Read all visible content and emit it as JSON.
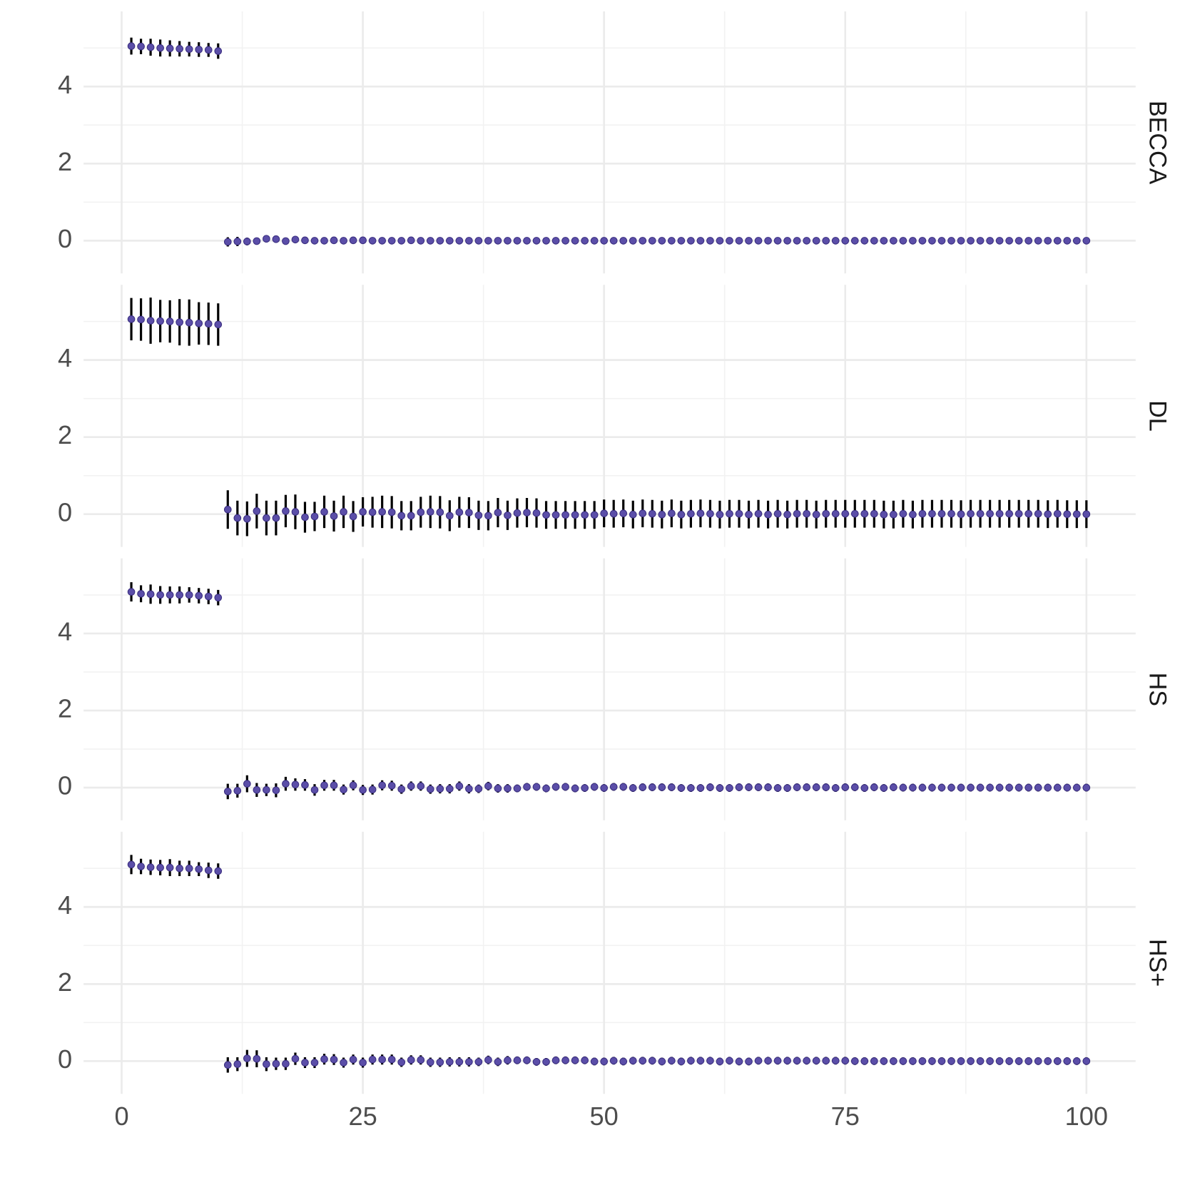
{
  "chart_data": {
    "type": "errorbar",
    "x": [
      1,
      2,
      3,
      4,
      5,
      6,
      7,
      8,
      9,
      10,
      11,
      12,
      13,
      14,
      15,
      16,
      17,
      18,
      19,
      20,
      21,
      22,
      23,
      24,
      25,
      26,
      27,
      28,
      29,
      30,
      31,
      32,
      33,
      34,
      35,
      36,
      37,
      38,
      39,
      40,
      41,
      42,
      43,
      44,
      45,
      46,
      47,
      48,
      49,
      50,
      51,
      52,
      53,
      54,
      55,
      56,
      57,
      58,
      59,
      60,
      61,
      62,
      63,
      64,
      65,
      66,
      67,
      68,
      69,
      70,
      71,
      72,
      73,
      74,
      75,
      76,
      77,
      78,
      79,
      80,
      81,
      82,
      83,
      84,
      85,
      86,
      87,
      88,
      89,
      90,
      91,
      92,
      93,
      94,
      95,
      96,
      97,
      98,
      99,
      100
    ],
    "xlim": [
      -3.95,
      105.1
    ],
    "xticks": [
      0,
      25,
      50,
      75,
      100
    ],
    "ylim": [
      -0.85,
      5.95
    ],
    "yticks": [
      0,
      2,
      4
    ],
    "grid": true,
    "color": "#5b4ea8",
    "error_color": "#000000",
    "series": [
      {
        "name": "BECCA",
        "values": [
          5.05,
          5.04,
          5.02,
          5.0,
          4.99,
          4.98,
          4.97,
          4.96,
          4.95,
          4.92,
          -0.03,
          -0.02,
          -0.02,
          -0.01,
          0.05,
          0.04,
          -0.01,
          0.03,
          0.01,
          0,
          0,
          0.01,
          0,
          0.01,
          0.01,
          0,
          0,
          0,
          0,
          0.01,
          0,
          0,
          0,
          0,
          0,
          0,
          0,
          0,
          0,
          0,
          0,
          0,
          0,
          0,
          0,
          0,
          0,
          0,
          0,
          0,
          0,
          0,
          0,
          0,
          0,
          0,
          0,
          0,
          0,
          0,
          0,
          0,
          0,
          0,
          0,
          0,
          0,
          0,
          0,
          0,
          0,
          0,
          0,
          0,
          0,
          0,
          0,
          0,
          0,
          0,
          0,
          0,
          0,
          0,
          0,
          0,
          0,
          0,
          0,
          0,
          0,
          0,
          0,
          0,
          0,
          0,
          0,
          0,
          0,
          0
        ],
        "errors": [
          0.22,
          0.2,
          0.22,
          0.22,
          0.21,
          0.2,
          0.19,
          0.19,
          0.18,
          0.2,
          0.12,
          0.12,
          0.1,
          0.08,
          0.06,
          0.04,
          0.03,
          0.03,
          0.02,
          0.02,
          0.02,
          0.02,
          0.02,
          0.02,
          0.02,
          0.02,
          0.02,
          0.02,
          0.02,
          0.02,
          0.02,
          0.02,
          0.02,
          0.02,
          0.02,
          0.02,
          0.02,
          0.02,
          0.02,
          0.02,
          0.02,
          0.02,
          0.02,
          0.02,
          0.02,
          0.02,
          0.02,
          0.02,
          0.02,
          0.02,
          0.02,
          0.02,
          0.02,
          0.02,
          0.02,
          0.02,
          0.02,
          0.02,
          0.02,
          0.02,
          0.02,
          0.02,
          0.02,
          0.02,
          0.02,
          0.02,
          0.02,
          0.02,
          0.02,
          0.02,
          0.02,
          0.02,
          0.02,
          0.02,
          0.02,
          0.02,
          0.02,
          0.02,
          0.02,
          0.02,
          0.02,
          0.02,
          0.02,
          0.02,
          0.02,
          0.02,
          0.02,
          0.02,
          0.02,
          0.02,
          0.02,
          0.02,
          0.02,
          0.02,
          0.02,
          0.02,
          0.02,
          0.02,
          0.02,
          0.02
        ]
      },
      {
        "name": "DL",
        "values": [
          5.06,
          5.05,
          5.02,
          5.01,
          5.0,
          4.98,
          4.97,
          4.95,
          4.94,
          4.92,
          0.12,
          -0.1,
          -0.12,
          0.08,
          -0.1,
          -0.1,
          0.08,
          0.06,
          -0.08,
          -0.06,
          0.06,
          -0.05,
          0.06,
          -0.06,
          0.06,
          0.05,
          0.06,
          0.05,
          -0.04,
          -0.04,
          0.05,
          0.06,
          0.05,
          -0.04,
          0.05,
          0.04,
          -0.03,
          -0.04,
          0.04,
          -0.03,
          0.03,
          0.04,
          0.03,
          -0.02,
          -0.02,
          -0.02,
          -0.02,
          -0.02,
          -0.02,
          0.02,
          0.01,
          0.02,
          -0.01,
          0.02,
          0.01,
          -0.01,
          0.02,
          -0.01,
          0.01,
          0.02,
          0.01,
          -0.01,
          0.01,
          0.01,
          -0.01,
          0.01,
          -0.01,
          0.01,
          -0.01,
          0.01,
          0.01,
          -0.01,
          0.01,
          0.01,
          0.01,
          0.01,
          0.01,
          0.01,
          -0.01,
          -0.01,
          0.01,
          -0.01,
          0.01,
          0.01,
          0.01,
          0.01,
          0,
          0.01,
          0.01,
          0.01,
          0.01,
          0.01,
          0.01,
          0.01,
          0.01,
          0,
          0.01,
          0,
          0,
          0
        ],
        "errors": [
          0.55,
          0.55,
          0.6,
          0.55,
          0.55,
          0.6,
          0.6,
          0.55,
          0.55,
          0.55,
          0.5,
          0.45,
          0.45,
          0.45,
          0.45,
          0.45,
          0.42,
          0.45,
          0.4,
          0.38,
          0.42,
          0.4,
          0.42,
          0.4,
          0.38,
          0.4,
          0.42,
          0.42,
          0.38,
          0.38,
          0.4,
          0.42,
          0.42,
          0.4,
          0.4,
          0.4,
          0.38,
          0.38,
          0.38,
          0.38,
          0.38,
          0.38,
          0.38,
          0.36,
          0.36,
          0.36,
          0.36,
          0.36,
          0.36,
          0.36,
          0.36,
          0.36,
          0.36,
          0.36,
          0.36,
          0.36,
          0.36,
          0.36,
          0.36,
          0.36,
          0.36,
          0.36,
          0.36,
          0.36,
          0.36,
          0.36,
          0.36,
          0.36,
          0.36,
          0.36,
          0.36,
          0.36,
          0.36,
          0.36,
          0.36,
          0.36,
          0.36,
          0.36,
          0.36,
          0.36,
          0.36,
          0.36,
          0.36,
          0.36,
          0.36,
          0.36,
          0.36,
          0.36,
          0.36,
          0.36,
          0.36,
          0.36,
          0.36,
          0.36,
          0.36,
          0.36,
          0.36,
          0.36,
          0.36,
          0.36
        ]
      },
      {
        "name": "HS",
        "values": [
          5.08,
          5.03,
          5.02,
          5.0,
          5.0,
          5.0,
          5.0,
          4.98,
          4.96,
          4.93,
          -0.1,
          -0.08,
          0.1,
          -0.06,
          -0.06,
          -0.07,
          0.1,
          0.08,
          0.07,
          -0.06,
          0.06,
          0.06,
          -0.05,
          0.06,
          -0.06,
          -0.05,
          0.06,
          0.05,
          -0.04,
          0.04,
          0.04,
          -0.04,
          -0.03,
          -0.03,
          0.04,
          -0.03,
          -0.03,
          0.04,
          -0.02,
          -0.02,
          -0.02,
          0.02,
          0.02,
          -0.02,
          0.02,
          0.02,
          -0.02,
          -0.01,
          0.02,
          -0.01,
          0.02,
          0.02,
          -0.01,
          0.01,
          0.01,
          0.01,
          0.01,
          -0.01,
          -0.01,
          -0.01,
          0.01,
          -0.01,
          -0.01,
          0.01,
          0.01,
          0.01,
          0.01,
          -0.01,
          -0.01,
          0.01,
          0.01,
          0.01,
          0.01,
          -0.01,
          0.01,
          0.01,
          -0.01,
          0.01,
          -0.01,
          0.01,
          0,
          0,
          0,
          0,
          0,
          0,
          0,
          0,
          0,
          0,
          0,
          0,
          0,
          0,
          0,
          0,
          0,
          0,
          0,
          0
        ],
        "errors": [
          0.25,
          0.22,
          0.25,
          0.23,
          0.22,
          0.22,
          0.2,
          0.2,
          0.2,
          0.2,
          0.2,
          0.18,
          0.22,
          0.18,
          0.16,
          0.18,
          0.18,
          0.16,
          0.15,
          0.15,
          0.14,
          0.14,
          0.13,
          0.13,
          0.13,
          0.13,
          0.13,
          0.13,
          0.12,
          0.12,
          0.12,
          0.12,
          0.12,
          0.12,
          0.12,
          0.12,
          0.11,
          0.11,
          0.11,
          0.11,
          0.1,
          0.1,
          0.1,
          0.1,
          0.1,
          0.1,
          0.1,
          0.1,
          0.1,
          0.1,
          0.1,
          0.1,
          0.1,
          0.1,
          0.1,
          0.1,
          0.1,
          0.1,
          0.1,
          0.1,
          0.1,
          0.1,
          0.1,
          0.1,
          0.1,
          0.1,
          0.1,
          0.1,
          0.1,
          0.1,
          0.1,
          0.1,
          0.1,
          0.1,
          0.1,
          0.1,
          0.1,
          0.1,
          0.1,
          0.1,
          0.1,
          0.1,
          0.1,
          0.1,
          0.1,
          0.1,
          0.1,
          0.1,
          0.1,
          0.1,
          0.1,
          0.1,
          0.1,
          0.1,
          0.1,
          0.1,
          0.1,
          0.1,
          0.1,
          0.1
        ]
      },
      {
        "name": "HS+",
        "values": [
          5.1,
          5.05,
          5.03,
          5.02,
          5.02,
          5.0,
          5.0,
          4.98,
          4.95,
          4.93,
          -0.1,
          -0.08,
          0.07,
          0.06,
          -0.08,
          -0.07,
          -0.07,
          0.06,
          -0.04,
          -0.04,
          0.05,
          0.04,
          -0.04,
          0.04,
          -0.04,
          0.04,
          0.04,
          0.04,
          -0.03,
          0.03,
          0.03,
          -0.03,
          -0.03,
          -0.02,
          -0.02,
          -0.02,
          -0.02,
          0.03,
          -0.02,
          0.02,
          0.02,
          0.02,
          -0.02,
          -0.02,
          0.02,
          0.02,
          0.02,
          0.02,
          -0.01,
          -0.01,
          0.01,
          -0.01,
          0.01,
          0.01,
          0.01,
          -0.01,
          0.01,
          -0.01,
          0.01,
          0.01,
          0.01,
          -0.01,
          0.01,
          -0.01,
          -0.01,
          0.01,
          0.01,
          0.01,
          0.01,
          0.01,
          0.01,
          0.01,
          0.01,
          0.01,
          0.01,
          0,
          0,
          0,
          0,
          0,
          0,
          0,
          0,
          0,
          0,
          0,
          0,
          0,
          0,
          0,
          0,
          0,
          0,
          0,
          0,
          0,
          0,
          0,
          0,
          0
        ],
        "errors": [
          0.25,
          0.2,
          0.2,
          0.2,
          0.22,
          0.2,
          0.2,
          0.18,
          0.2,
          0.2,
          0.2,
          0.18,
          0.22,
          0.22,
          0.18,
          0.16,
          0.16,
          0.16,
          0.14,
          0.14,
          0.14,
          0.14,
          0.13,
          0.13,
          0.13,
          0.13,
          0.13,
          0.13,
          0.12,
          0.12,
          0.12,
          0.12,
          0.12,
          0.12,
          0.12,
          0.12,
          0.11,
          0.11,
          0.11,
          0.11,
          0.1,
          0.1,
          0.1,
          0.1,
          0.1,
          0.1,
          0.1,
          0.1,
          0.1,
          0.1,
          0.1,
          0.1,
          0.1,
          0.1,
          0.1,
          0.1,
          0.1,
          0.1,
          0.1,
          0.1,
          0.1,
          0.1,
          0.1,
          0.1,
          0.1,
          0.1,
          0.1,
          0.1,
          0.1,
          0.1,
          0.1,
          0.1,
          0.1,
          0.1,
          0.1,
          0.1,
          0.1,
          0.1,
          0.1,
          0.1,
          0.1,
          0.1,
          0.1,
          0.1,
          0.1,
          0.1,
          0.1,
          0.1,
          0.1,
          0.1,
          0.1,
          0.1,
          0.1,
          0.1,
          0.1,
          0.1,
          0.1,
          0.1,
          0.1,
          0.1
        ]
      }
    ]
  }
}
